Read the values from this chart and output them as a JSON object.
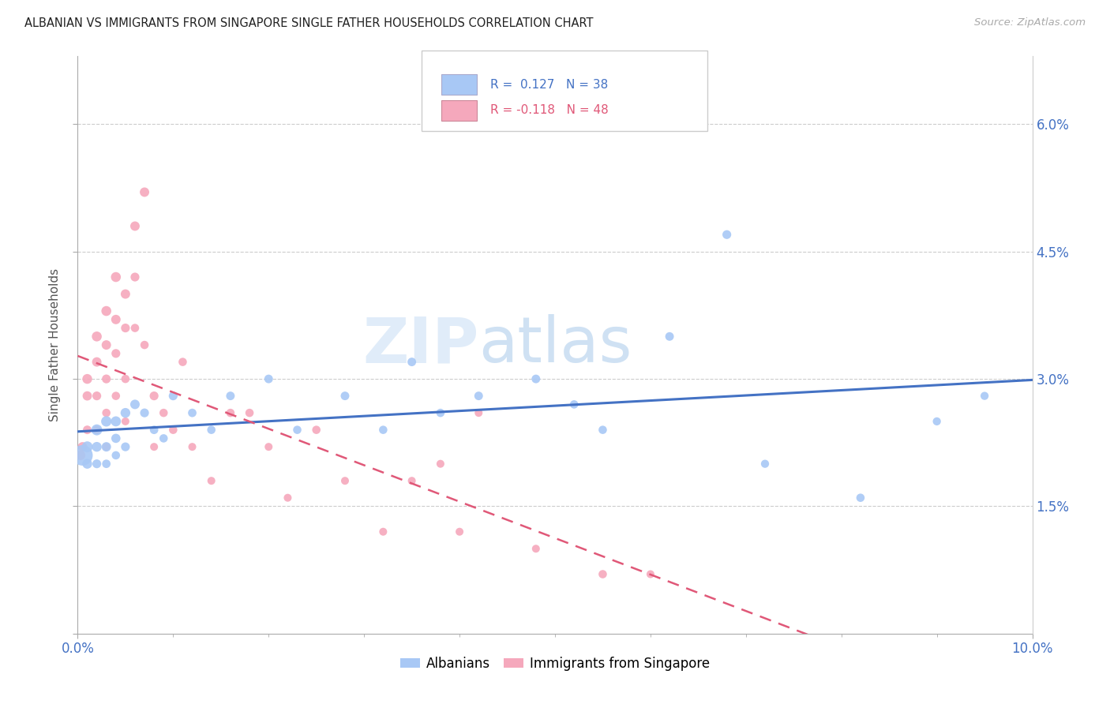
{
  "title": "ALBANIAN VS IMMIGRANTS FROM SINGAPORE SINGLE FATHER HOUSEHOLDS CORRELATION CHART",
  "source": "Source: ZipAtlas.com",
  "ylabel": "Single Father Households",
  "xlim": [
    0.0,
    0.1
  ],
  "ylim": [
    0.0,
    0.068
  ],
  "r_albanian": 0.127,
  "n_albanian": 38,
  "r_singapore": -0.118,
  "n_singapore": 48,
  "color_albanian": "#a8c8f5",
  "color_singapore": "#f5a8bc",
  "color_line_albanian": "#4472c4",
  "color_line_singapore": "#e05878",
  "watermark_zip": "ZIP",
  "watermark_atlas": "atlas",
  "albanian_x": [
    0.0005,
    0.001,
    0.001,
    0.002,
    0.002,
    0.002,
    0.003,
    0.003,
    0.003,
    0.004,
    0.004,
    0.004,
    0.005,
    0.005,
    0.006,
    0.007,
    0.008,
    0.009,
    0.01,
    0.012,
    0.014,
    0.016,
    0.02,
    0.023,
    0.028,
    0.032,
    0.035,
    0.038,
    0.042,
    0.048,
    0.052,
    0.055,
    0.062,
    0.068,
    0.072,
    0.082,
    0.09,
    0.095
  ],
  "albanian_y": [
    0.021,
    0.022,
    0.02,
    0.024,
    0.022,
    0.02,
    0.025,
    0.022,
    0.02,
    0.025,
    0.023,
    0.021,
    0.026,
    0.022,
    0.027,
    0.026,
    0.024,
    0.023,
    0.028,
    0.026,
    0.024,
    0.028,
    0.03,
    0.024,
    0.028,
    0.024,
    0.032,
    0.026,
    0.028,
    0.03,
    0.027,
    0.024,
    0.035,
    0.047,
    0.02,
    0.016,
    0.025,
    0.028
  ],
  "albanian_sizes": [
    350,
    100,
    80,
    100,
    80,
    65,
    90,
    75,
    60,
    85,
    70,
    58,
    80,
    65,
    75,
    65,
    60,
    58,
    65,
    60,
    58,
    62,
    62,
    58,
    62,
    58,
    62,
    58,
    62,
    62,
    58,
    58,
    62,
    65,
    55,
    58,
    55,
    55
  ],
  "singapore_x": [
    0.0003,
    0.0005,
    0.001,
    0.001,
    0.001,
    0.002,
    0.002,
    0.002,
    0.002,
    0.003,
    0.003,
    0.003,
    0.003,
    0.003,
    0.004,
    0.004,
    0.004,
    0.004,
    0.005,
    0.005,
    0.005,
    0.005,
    0.006,
    0.006,
    0.006,
    0.007,
    0.007,
    0.008,
    0.008,
    0.009,
    0.01,
    0.011,
    0.012,
    0.014,
    0.016,
    0.018,
    0.02,
    0.022,
    0.025,
    0.028,
    0.032,
    0.035,
    0.038,
    0.04,
    0.042,
    0.048,
    0.055,
    0.06
  ],
  "singapore_y": [
    0.021,
    0.022,
    0.03,
    0.028,
    0.024,
    0.035,
    0.032,
    0.028,
    0.024,
    0.038,
    0.034,
    0.03,
    0.026,
    0.022,
    0.042,
    0.037,
    0.033,
    0.028,
    0.04,
    0.036,
    0.03,
    0.025,
    0.048,
    0.042,
    0.036,
    0.052,
    0.034,
    0.028,
    0.022,
    0.026,
    0.024,
    0.032,
    0.022,
    0.018,
    0.026,
    0.026,
    0.022,
    0.016,
    0.024,
    0.018,
    0.012,
    0.018,
    0.02,
    0.012,
    0.026,
    0.01,
    0.007,
    0.007
  ],
  "singapore_sizes": [
    80,
    75,
    80,
    72,
    62,
    82,
    74,
    65,
    58,
    82,
    74,
    65,
    58,
    52,
    82,
    74,
    65,
    58,
    74,
    65,
    58,
    52,
    74,
    65,
    58,
    74,
    58,
    65,
    52,
    58,
    58,
    58,
    52,
    52,
    58,
    58,
    52,
    52,
    58,
    52,
    52,
    52,
    52,
    52,
    52,
    52,
    58,
    52
  ]
}
